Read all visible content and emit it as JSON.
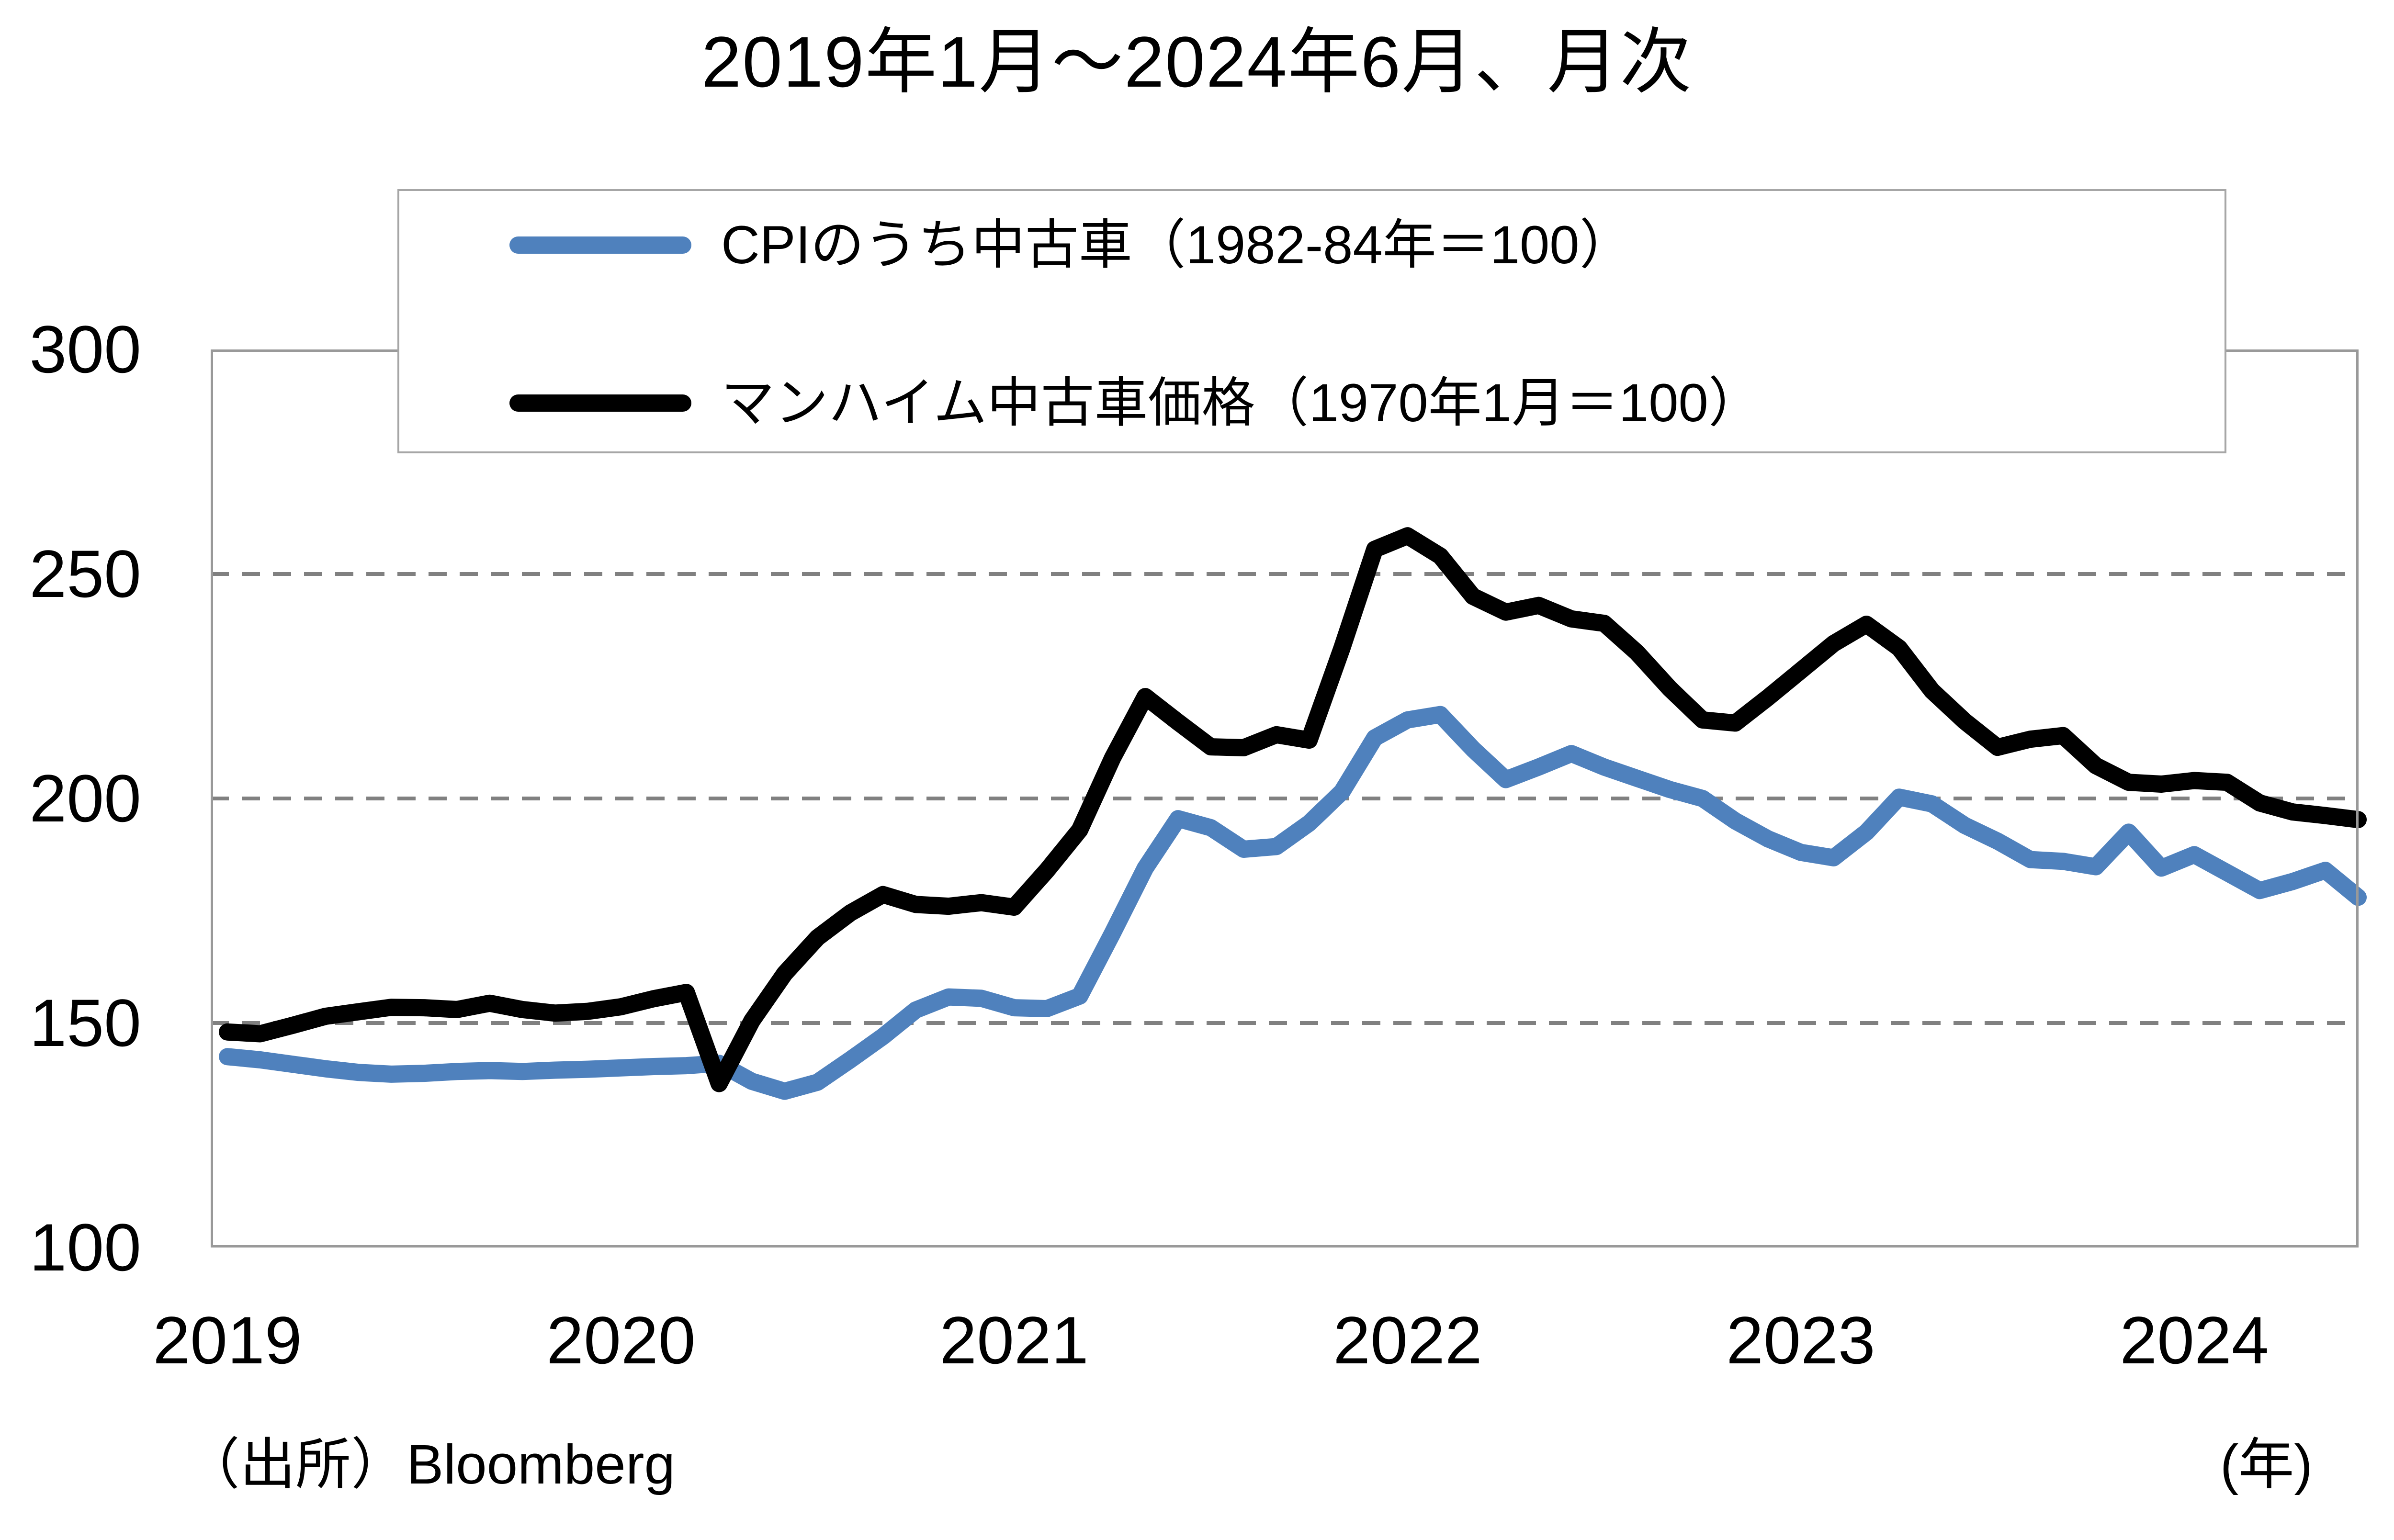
{
  "title": "2019年1月～2024年6月、月次",
  "source": "（出所）Bloomberg",
  "year_unit": "(年)",
  "chart_data": {
    "type": "line",
    "title": "2019年1月～2024年6月、月次",
    "x_start": "2019-01",
    "x_end": "2024-06",
    "frequency": "monthly",
    "x_tick_labels": [
      "2019",
      "2020",
      "2021",
      "2022",
      "2023",
      "2024"
    ],
    "y_ticks": [
      "300",
      "250",
      "200",
      "150",
      "100"
    ],
    "ylim": [
      100,
      300
    ],
    "gridlines_at": [
      150,
      200,
      250
    ],
    "grid_on": true,
    "grid_color": "#808080",
    "border_color": "#999999",
    "legend_position": "top-center-overlay",
    "series": [
      {
        "name": "CPIのうち中古車（1982-84年＝100）",
        "color": "#4F81BD",
        "values": [
          142.5,
          141.8,
          140.8,
          139.8,
          139,
          138.6,
          138.8,
          139.2,
          139.4,
          139.2,
          139.5,
          139.7,
          140,
          140.3,
          140.5,
          141,
          137,
          134.8,
          136.8,
          141.8,
          147,
          152.9,
          155.8,
          155.5,
          153.4,
          153.2,
          156,
          170,
          184.5,
          195.5,
          193.5,
          188.7,
          189.3,
          194.5,
          201.5,
          213.5,
          217.5,
          218.7,
          211,
          204.2,
          207,
          210,
          207,
          204.5,
          202,
          200,
          195,
          191,
          188,
          186.8,
          192.5,
          200.3,
          198.8,
          194,
          190.5,
          186.4,
          186,
          184.8,
          192.5,
          184.5,
          187.5,
          183.5,
          179.5,
          181.5,
          184,
          178
        ]
      },
      {
        "name": "マンハイム中古車価格（1970年1月＝100）",
        "color": "#000000",
        "values": [
          148,
          147.6,
          149.5,
          151.5,
          152.5,
          153.5,
          153.4,
          153,
          154.4,
          153,
          152.2,
          152.6,
          153.6,
          155.4,
          156.8,
          136.5,
          150.5,
          161,
          169,
          174.5,
          178.6,
          176.4,
          176,
          176.8,
          175.8,
          184,
          193,
          209,
          222.7,
          217,
          211.5,
          211.3,
          214.2,
          213,
          233.5,
          255.5,
          258.5,
          254,
          245,
          241.5,
          243,
          240,
          239,
          232.5,
          224.5,
          217.5,
          216.8,
          222.5,
          228.5,
          234.5,
          238.8,
          233.5,
          224,
          217.2,
          211.4,
          213.2,
          214,
          207.3,
          203.6,
          203.2,
          204,
          203.6,
          199,
          197,
          196.2,
          195.3
        ]
      }
    ]
  }
}
